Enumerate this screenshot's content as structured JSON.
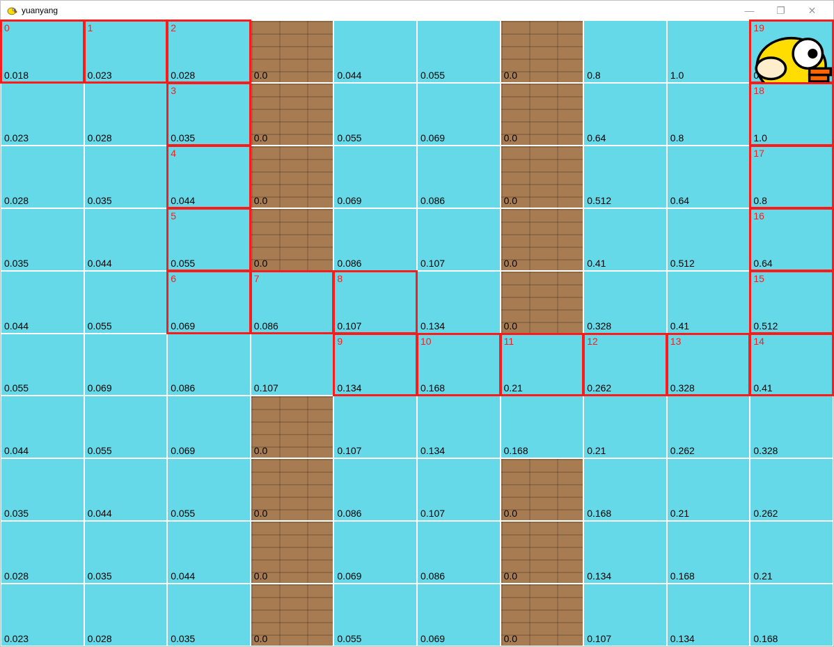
{
  "window": {
    "title": "yuanyang",
    "icon_name": "bird-icon",
    "controls": {
      "minimize": "—",
      "maximize": "❐",
      "close": "✕"
    }
  },
  "grid": {
    "rows": 10,
    "cols": 10,
    "cell_bg_sky": "#66d9e8",
    "cell_bg_wall": "#a87c52",
    "grid_line_color": "#ffffff",
    "path_outline_color": "#ff1a1a",
    "path_index_color": "#ff1a1a",
    "value_color": "#000000",
    "value_fontsize": 14,
    "index_fontsize": 14,
    "bird_cell": {
      "row": 0,
      "col": 9
    },
    "cells": [
      [
        {
          "type": "sky",
          "value": "0.018",
          "path_index": "0"
        },
        {
          "type": "sky",
          "value": "0.023",
          "path_index": "1"
        },
        {
          "type": "sky",
          "value": "0.028",
          "path_index": "2"
        },
        {
          "type": "wall",
          "value": "0.0"
        },
        {
          "type": "sky",
          "value": "0.044"
        },
        {
          "type": "sky",
          "value": "0.055"
        },
        {
          "type": "wall",
          "value": "0.0"
        },
        {
          "type": "sky",
          "value": "0.8"
        },
        {
          "type": "sky",
          "value": "1.0"
        },
        {
          "type": "sky",
          "value": "0.0",
          "path_index": "19",
          "bird": true
        }
      ],
      [
        {
          "type": "sky",
          "value": "0.023"
        },
        {
          "type": "sky",
          "value": "0.028"
        },
        {
          "type": "sky",
          "value": "0.035",
          "path_index": "3"
        },
        {
          "type": "wall",
          "value": "0.0"
        },
        {
          "type": "sky",
          "value": "0.055"
        },
        {
          "type": "sky",
          "value": "0.069"
        },
        {
          "type": "wall",
          "value": "0.0"
        },
        {
          "type": "sky",
          "value": "0.64"
        },
        {
          "type": "sky",
          "value": "0.8"
        },
        {
          "type": "sky",
          "value": "1.0",
          "path_index": "18"
        }
      ],
      [
        {
          "type": "sky",
          "value": "0.028"
        },
        {
          "type": "sky",
          "value": "0.035"
        },
        {
          "type": "sky",
          "value": "0.044",
          "path_index": "4"
        },
        {
          "type": "wall",
          "value": "0.0"
        },
        {
          "type": "sky",
          "value": "0.069"
        },
        {
          "type": "sky",
          "value": "0.086"
        },
        {
          "type": "wall",
          "value": "0.0"
        },
        {
          "type": "sky",
          "value": "0.512"
        },
        {
          "type": "sky",
          "value": "0.64"
        },
        {
          "type": "sky",
          "value": "0.8",
          "path_index": "17"
        }
      ],
      [
        {
          "type": "sky",
          "value": "0.035"
        },
        {
          "type": "sky",
          "value": "0.044"
        },
        {
          "type": "sky",
          "value": "0.055",
          "path_index": "5"
        },
        {
          "type": "wall",
          "value": "0.0"
        },
        {
          "type": "sky",
          "value": "0.086"
        },
        {
          "type": "sky",
          "value": "0.107"
        },
        {
          "type": "wall",
          "value": "0.0"
        },
        {
          "type": "sky",
          "value": "0.41"
        },
        {
          "type": "sky",
          "value": "0.512"
        },
        {
          "type": "sky",
          "value": "0.64",
          "path_index": "16"
        }
      ],
      [
        {
          "type": "sky",
          "value": "0.044"
        },
        {
          "type": "sky",
          "value": "0.055"
        },
        {
          "type": "sky",
          "value": "0.069",
          "path_index": "6"
        },
        {
          "type": "sky",
          "value": "0.086",
          "path_index": "7"
        },
        {
          "type": "sky",
          "value": "0.107",
          "path_index": "8"
        },
        {
          "type": "sky",
          "value": "0.134"
        },
        {
          "type": "wall",
          "value": "0.0"
        },
        {
          "type": "sky",
          "value": "0.328"
        },
        {
          "type": "sky",
          "value": "0.41"
        },
        {
          "type": "sky",
          "value": "0.512",
          "path_index": "15"
        }
      ],
      [
        {
          "type": "sky",
          "value": "0.055"
        },
        {
          "type": "sky",
          "value": "0.069"
        },
        {
          "type": "sky",
          "value": "0.086"
        },
        {
          "type": "sky",
          "value": "0.107"
        },
        {
          "type": "sky",
          "value": "0.134",
          "path_index": "9"
        },
        {
          "type": "sky",
          "value": "0.168",
          "path_index": "10"
        },
        {
          "type": "sky",
          "value": "0.21",
          "path_index": "11"
        },
        {
          "type": "sky",
          "value": "0.262",
          "path_index": "12"
        },
        {
          "type": "sky",
          "value": "0.328",
          "path_index": "13"
        },
        {
          "type": "sky",
          "value": "0.41",
          "path_index": "14"
        }
      ],
      [
        {
          "type": "sky",
          "value": "0.044"
        },
        {
          "type": "sky",
          "value": "0.055"
        },
        {
          "type": "sky",
          "value": "0.069"
        },
        {
          "type": "wall",
          "value": "0.0"
        },
        {
          "type": "sky",
          "value": "0.107"
        },
        {
          "type": "sky",
          "value": "0.134"
        },
        {
          "type": "sky",
          "value": "0.168"
        },
        {
          "type": "sky",
          "value": "0.21"
        },
        {
          "type": "sky",
          "value": "0.262"
        },
        {
          "type": "sky",
          "value": "0.328"
        }
      ],
      [
        {
          "type": "sky",
          "value": "0.035"
        },
        {
          "type": "sky",
          "value": "0.044"
        },
        {
          "type": "sky",
          "value": "0.055"
        },
        {
          "type": "wall",
          "value": "0.0"
        },
        {
          "type": "sky",
          "value": "0.086"
        },
        {
          "type": "sky",
          "value": "0.107"
        },
        {
          "type": "wall",
          "value": "0.0"
        },
        {
          "type": "sky",
          "value": "0.168"
        },
        {
          "type": "sky",
          "value": "0.21"
        },
        {
          "type": "sky",
          "value": "0.262"
        }
      ],
      [
        {
          "type": "sky",
          "value": "0.028"
        },
        {
          "type": "sky",
          "value": "0.035"
        },
        {
          "type": "sky",
          "value": "0.044"
        },
        {
          "type": "wall",
          "value": "0.0"
        },
        {
          "type": "sky",
          "value": "0.069"
        },
        {
          "type": "sky",
          "value": "0.086"
        },
        {
          "type": "wall",
          "value": "0.0"
        },
        {
          "type": "sky",
          "value": "0.134"
        },
        {
          "type": "sky",
          "value": "0.168"
        },
        {
          "type": "sky",
          "value": "0.21"
        }
      ],
      [
        {
          "type": "sky",
          "value": "0.023"
        },
        {
          "type": "sky",
          "value": "0.028"
        },
        {
          "type": "sky",
          "value": "0.035"
        },
        {
          "type": "wall",
          "value": "0.0"
        },
        {
          "type": "sky",
          "value": "0.055"
        },
        {
          "type": "sky",
          "value": "0.069"
        },
        {
          "type": "wall",
          "value": "0.0"
        },
        {
          "type": "sky",
          "value": "0.107"
        },
        {
          "type": "sky",
          "value": "0.134"
        },
        {
          "type": "sky",
          "value": "0.168"
        }
      ]
    ]
  },
  "bird_svg_colors": {
    "body": "#ffdd00",
    "wing": "#ffeecc",
    "beak": "#ff6600",
    "eye_white": "#ffffff",
    "eye_black": "#000000",
    "outline": "#000000"
  }
}
